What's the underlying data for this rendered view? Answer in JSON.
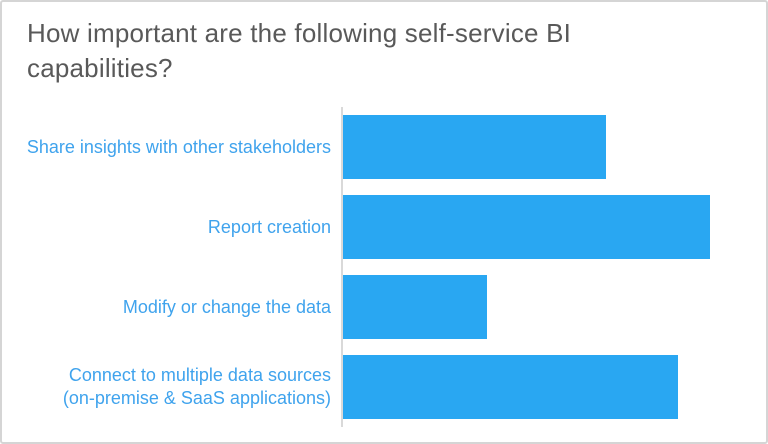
{
  "slide": {
    "title_lines": [
      "How important are the following self-service BI",
      "capabilities?"
    ]
  },
  "chart_data": {
    "type": "bar",
    "orientation": "horizontal",
    "title": "How important are the following self-service BI capabilities?",
    "categories": [
      "Share insights with other stakeholders",
      "Report creation",
      "Modify or change the data",
      "Connect to multiple data sources\n(on-premise & SaaS applications)"
    ],
    "values": [
      66,
      92,
      36,
      84
    ],
    "xlim": [
      0,
      100
    ],
    "xlabel": "",
    "ylabel": "",
    "grid": false,
    "legend": "none",
    "data_labels_visible": false,
    "axis_tick_labels_visible": false,
    "bar_color": "#29a7f2"
  },
  "colors": {
    "background": "#ffffff",
    "slide_border": "#d5d5d5",
    "title_text": "#595959",
    "category_label": "#3fa3ed",
    "axis_line": "#d9d9d9"
  }
}
